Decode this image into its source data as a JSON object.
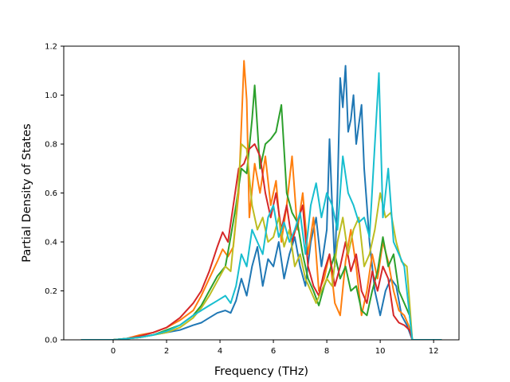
{
  "chart_data": {
    "type": "line",
    "title": "",
    "xlabel": "Frequency (THz)",
    "ylabel": "Partial Density of States",
    "xlim": [
      -1.85,
      12.95
    ],
    "ylim": [
      0.0,
      1.2
    ],
    "xticks": [
      0,
      2,
      4,
      6,
      8,
      10,
      12
    ],
    "xtick_labels": [
      "0",
      "2",
      "4",
      "6",
      "8",
      "10",
      "12"
    ],
    "yticks": [
      0.0,
      0.2,
      0.4,
      0.6,
      0.8,
      1.0,
      1.2
    ],
    "ytick_labels": [
      "0.0",
      "0.2",
      "0.4",
      "0.6",
      "0.8",
      "1.0",
      "1.2"
    ],
    "grid": false,
    "legend": "none",
    "series": [
      {
        "color": "#1f77b4",
        "x": [
          -1.2,
          0,
          0.5,
          1,
          1.5,
          2,
          2.5,
          3,
          3.3,
          3.6,
          3.9,
          4.2,
          4.4,
          4.6,
          4.8,
          5.0,
          5.2,
          5.4,
          5.6,
          5.8,
          6.0,
          6.2,
          6.4,
          6.6,
          6.8,
          7.0,
          7.2,
          7.4,
          7.6,
          7.8,
          8.0,
          8.1,
          8.2,
          8.3,
          8.4,
          8.5,
          8.6,
          8.7,
          8.8,
          8.9,
          9.0,
          9.1,
          9.2,
          9.3,
          9.4,
          9.5,
          9.6,
          9.7,
          9.8,
          9.9,
          10.0,
          10.2,
          10.4,
          10.6,
          10.8,
          11.0,
          11.2,
          12.3
        ],
        "y": [
          0.0,
          0.0,
          0.005,
          0.01,
          0.02,
          0.03,
          0.04,
          0.06,
          0.07,
          0.09,
          0.11,
          0.12,
          0.11,
          0.16,
          0.25,
          0.18,
          0.3,
          0.38,
          0.22,
          0.33,
          0.3,
          0.4,
          0.25,
          0.35,
          0.42,
          0.3,
          0.22,
          0.4,
          0.5,
          0.3,
          0.45,
          0.82,
          0.55,
          0.3,
          0.6,
          1.07,
          0.95,
          1.12,
          0.85,
          0.9,
          1.0,
          0.8,
          0.88,
          0.96,
          0.7,
          0.55,
          0.4,
          0.3,
          0.2,
          0.15,
          0.1,
          0.2,
          0.25,
          0.22,
          0.1,
          0.06,
          0.0,
          0.0
        ]
      },
      {
        "color": "#ff7f0e",
        "x": [
          -1.2,
          0,
          0.5,
          1,
          1.5,
          2,
          2.5,
          3,
          3.3,
          3.6,
          3.9,
          4.1,
          4.3,
          4.5,
          4.7,
          4.9,
          5.0,
          5.1,
          5.3,
          5.5,
          5.7,
          5.9,
          6.1,
          6.3,
          6.5,
          6.7,
          6.9,
          7.1,
          7.3,
          7.5,
          7.7,
          7.9,
          8.1,
          8.3,
          8.5,
          8.7,
          8.9,
          9.1,
          9.3,
          9.5,
          9.7,
          9.9,
          10.1,
          10.3,
          10.5,
          10.7,
          10.9,
          11.1,
          11.2,
          12.3
        ],
        "y": [
          0.0,
          0.0,
          0.005,
          0.02,
          0.03,
          0.05,
          0.08,
          0.12,
          0.18,
          0.25,
          0.32,
          0.37,
          0.34,
          0.38,
          0.6,
          1.14,
          0.98,
          0.5,
          0.72,
          0.6,
          0.75,
          0.55,
          0.65,
          0.4,
          0.55,
          0.75,
          0.45,
          0.6,
          0.35,
          0.5,
          0.2,
          0.25,
          0.35,
          0.15,
          0.1,
          0.32,
          0.45,
          0.3,
          0.1,
          0.2,
          0.35,
          0.25,
          0.4,
          0.32,
          0.2,
          0.12,
          0.1,
          0.05,
          0.0,
          0.0
        ]
      },
      {
        "color": "#2ca02c",
        "x": [
          -1.2,
          0,
          0.5,
          1,
          1.5,
          2,
          2.5,
          3,
          3.3,
          3.6,
          3.9,
          4.2,
          4.4,
          4.6,
          4.8,
          5.0,
          5.2,
          5.3,
          5.5,
          5.7,
          5.9,
          6.1,
          6.3,
          6.5,
          6.7,
          6.9,
          7.1,
          7.3,
          7.5,
          7.7,
          7.9,
          8.1,
          8.3,
          8.5,
          8.7,
          8.9,
          9.1,
          9.3,
          9.5,
          9.7,
          9.9,
          10.1,
          10.3,
          10.5,
          10.7,
          10.9,
          11.1,
          11.2,
          12.3
        ],
        "y": [
          0.0,
          0.0,
          0.005,
          0.01,
          0.02,
          0.04,
          0.06,
          0.1,
          0.14,
          0.2,
          0.26,
          0.3,
          0.42,
          0.55,
          0.7,
          0.68,
          0.9,
          1.04,
          0.7,
          0.8,
          0.82,
          0.85,
          0.96,
          0.6,
          0.52,
          0.48,
          0.35,
          0.25,
          0.2,
          0.14,
          0.22,
          0.28,
          0.35,
          0.25,
          0.3,
          0.2,
          0.22,
          0.12,
          0.1,
          0.2,
          0.28,
          0.42,
          0.3,
          0.35,
          0.2,
          0.15,
          0.1,
          0.0,
          0.0
        ]
      },
      {
        "color": "#d62728",
        "x": [
          -1.2,
          0,
          0.5,
          1,
          1.5,
          2,
          2.5,
          3,
          3.3,
          3.6,
          3.9,
          4.1,
          4.3,
          4.5,
          4.7,
          4.9,
          5.1,
          5.3,
          5.5,
          5.7,
          5.9,
          6.1,
          6.3,
          6.5,
          6.7,
          6.9,
          7.1,
          7.3,
          7.5,
          7.7,
          7.9,
          8.1,
          8.3,
          8.5,
          8.7,
          8.9,
          9.1,
          9.3,
          9.5,
          9.7,
          9.9,
          10.1,
          10.3,
          10.5,
          10.7,
          10.9,
          11.1,
          11.2,
          12.3
        ],
        "y": [
          0.0,
          0.0,
          0.005,
          0.015,
          0.03,
          0.05,
          0.09,
          0.15,
          0.2,
          0.28,
          0.38,
          0.44,
          0.4,
          0.55,
          0.7,
          0.72,
          0.78,
          0.8,
          0.75,
          0.6,
          0.5,
          0.6,
          0.45,
          0.55,
          0.4,
          0.48,
          0.55,
          0.3,
          0.22,
          0.18,
          0.28,
          0.35,
          0.22,
          0.3,
          0.4,
          0.28,
          0.35,
          0.2,
          0.15,
          0.28,
          0.2,
          0.3,
          0.25,
          0.1,
          0.07,
          0.06,
          0.04,
          0.0,
          0.0
        ]
      },
      {
        "color": "#bcbd22",
        "x": [
          -1.2,
          0,
          0.5,
          1,
          1.5,
          2,
          2.5,
          3,
          3.3,
          3.6,
          3.9,
          4.2,
          4.4,
          4.6,
          4.8,
          5.0,
          5.2,
          5.4,
          5.6,
          5.8,
          6.0,
          6.2,
          6.4,
          6.6,
          6.8,
          7.0,
          7.2,
          7.4,
          7.6,
          7.8,
          8.0,
          8.2,
          8.4,
          8.6,
          8.8,
          9.0,
          9.2,
          9.4,
          9.6,
          9.8,
          10.0,
          10.2,
          10.4,
          10.6,
          10.8,
          11.0,
          11.2,
          12.3
        ],
        "y": [
          0.0,
          0.0,
          0.005,
          0.01,
          0.02,
          0.03,
          0.05,
          0.09,
          0.13,
          0.18,
          0.24,
          0.3,
          0.28,
          0.5,
          0.8,
          0.78,
          0.55,
          0.45,
          0.5,
          0.4,
          0.42,
          0.5,
          0.38,
          0.45,
          0.3,
          0.35,
          0.25,
          0.2,
          0.15,
          0.2,
          0.25,
          0.22,
          0.4,
          0.5,
          0.35,
          0.45,
          0.5,
          0.3,
          0.35,
          0.45,
          0.6,
          0.5,
          0.52,
          0.4,
          0.32,
          0.3,
          0.0,
          0.0
        ]
      },
      {
        "color": "#17becf",
        "x": [
          -1.2,
          0,
          0.5,
          1,
          1.5,
          2,
          2.5,
          3,
          3.3,
          3.6,
          3.9,
          4.2,
          4.4,
          4.6,
          4.8,
          5.0,
          5.2,
          5.4,
          5.6,
          5.8,
          6.0,
          6.2,
          6.4,
          6.6,
          6.8,
          7.0,
          7.2,
          7.4,
          7.6,
          7.8,
          8.0,
          8.2,
          8.4,
          8.6,
          8.8,
          9.0,
          9.2,
          9.4,
          9.6,
          9.8,
          9.95,
          10.1,
          10.3,
          10.5,
          10.7,
          10.9,
          11.1,
          11.2,
          12.3
        ],
        "y": [
          0.0,
          0.0,
          0.005,
          0.01,
          0.02,
          0.035,
          0.06,
          0.1,
          0.12,
          0.14,
          0.16,
          0.18,
          0.15,
          0.22,
          0.35,
          0.3,
          0.45,
          0.4,
          0.35,
          0.5,
          0.55,
          0.42,
          0.48,
          0.4,
          0.45,
          0.52,
          0.35,
          0.55,
          0.64,
          0.5,
          0.6,
          0.55,
          0.45,
          0.75,
          0.6,
          0.55,
          0.48,
          0.5,
          0.42,
          0.8,
          1.09,
          0.5,
          0.7,
          0.4,
          0.35,
          0.3,
          0.1,
          0.0,
          0.0
        ]
      }
    ]
  }
}
